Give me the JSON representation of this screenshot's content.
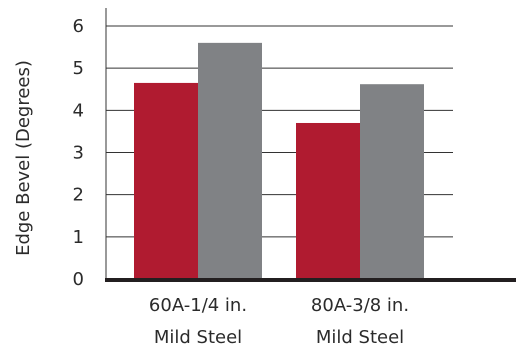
{
  "chart_data": {
    "type": "bar",
    "title": "",
    "xlabel": "",
    "ylabel": "Edge Bevel (Degrees)",
    "ylim": [
      0,
      6
    ],
    "yticks": [
      "0",
      "1",
      "2",
      "3",
      "4",
      "5",
      "6"
    ],
    "grid": true,
    "legend": "none",
    "categories": [
      [
        "60A-1/4 in.",
        "Mild Steel"
      ],
      [
        "80A-3/8 in.",
        "Mild Steel"
      ]
    ],
    "series": [
      {
        "color": "#b01b30",
        "values": [
          4.65,
          3.7
        ]
      },
      {
        "color": "#808285",
        "values": [
          5.6,
          4.62
        ]
      }
    ]
  }
}
